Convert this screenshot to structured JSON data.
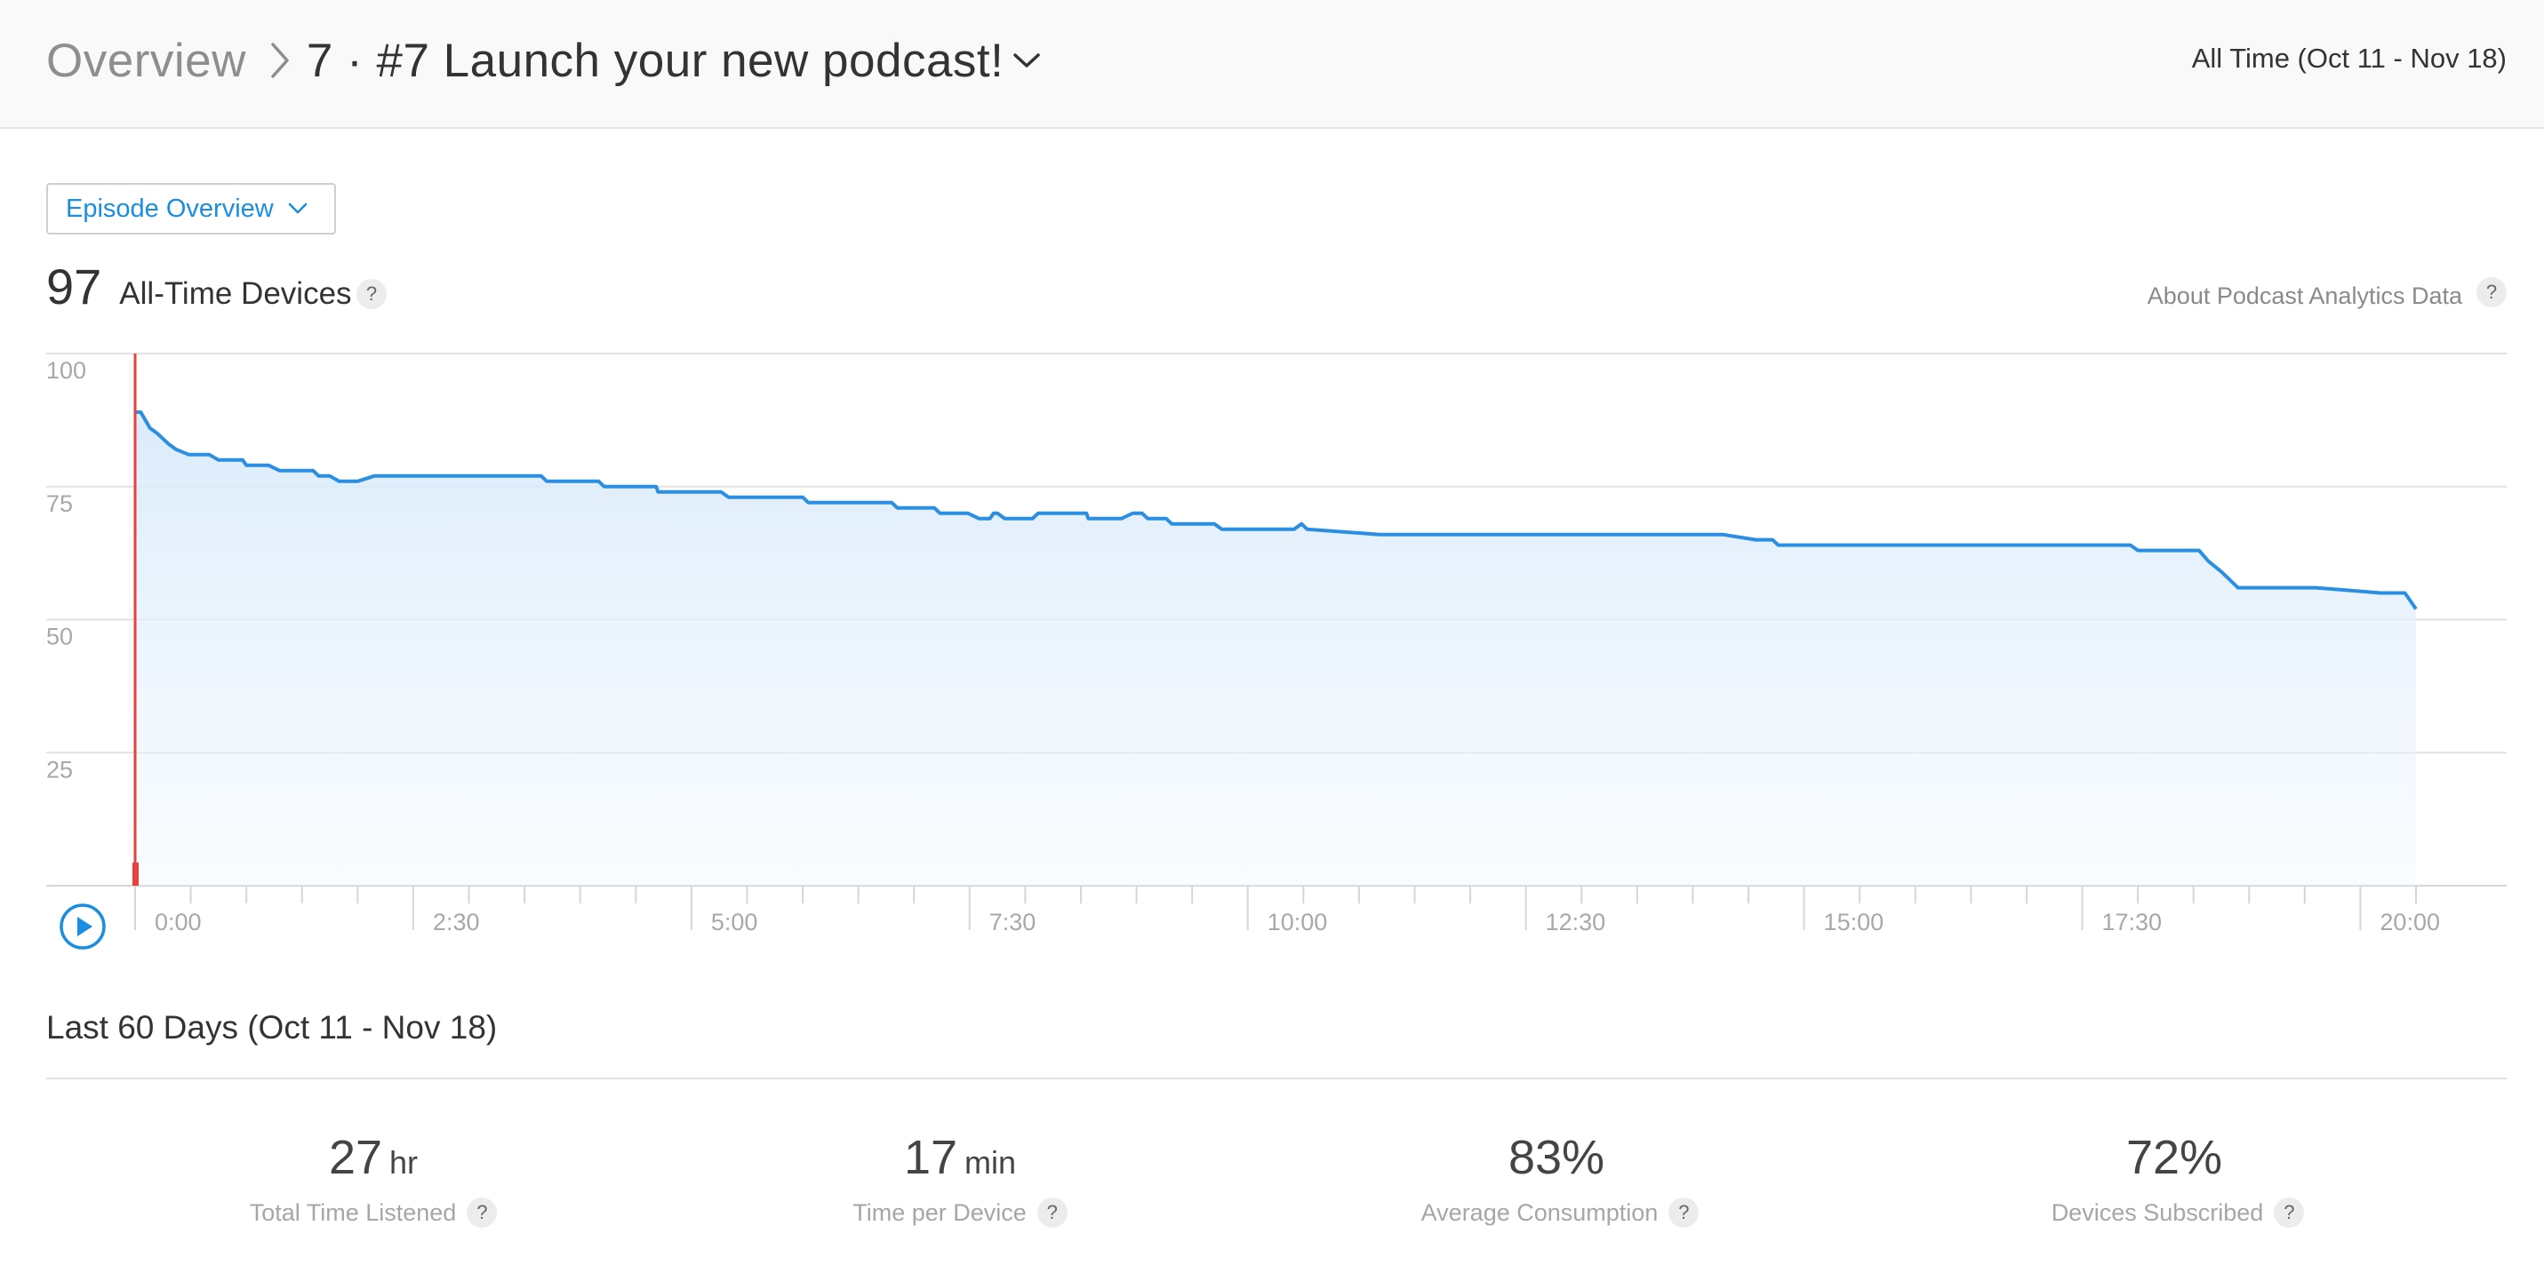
{
  "header": {
    "breadcrumb_root": "Overview",
    "current_title": "7 · #7 Launch your new podcast!",
    "date_range": "All Time (Oct 11 - Nov 18)"
  },
  "view_select": {
    "selected": "Episode Overview"
  },
  "total": {
    "value": "97",
    "label": "All-Time Devices",
    "help": "?"
  },
  "about": {
    "label": "About Podcast Analytics Data",
    "help": "?"
  },
  "colors": {
    "line": "#2a8fe3",
    "playhead": "#e8403a",
    "accent": "#1a8ee0"
  },
  "chart_data": {
    "type": "area",
    "xlabel": "",
    "ylabel": "",
    "xlim": [
      0,
      1230
    ],
    "ylim": [
      0,
      100
    ],
    "grid": true,
    "yticks": [
      "100",
      "75",
      "50",
      "25"
    ],
    "xticks": [
      "0:00",
      "2:30",
      "5:00",
      "7:30",
      "10:00",
      "12:30",
      "15:00",
      "17:30",
      "20:00"
    ],
    "series": [
      {
        "x": [
          0,
          3,
          8,
          12,
          15,
          18,
          22,
          29,
          40,
          45,
          58,
          60,
          72,
          78,
          96,
          99,
          105,
          110,
          120,
          129,
          153,
          181,
          219,
          222,
          250,
          253,
          281,
          282,
          301,
          316,
          320,
          324,
          360,
          363,
          408,
          411,
          431,
          434,
          449,
          455,
          461,
          463,
          465,
          469,
          484,
          487,
          505,
          513,
          514,
          525,
          532,
          538,
          543,
          546,
          556,
          559,
          582,
          586,
          612,
          625,
          629,
          632,
          671,
          718,
          847,
          852,
          856,
          874,
          883,
          886,
          1070,
          1076,
          1080,
          1113,
          1118,
          1125,
          1134,
          1140,
          1170,
          1176,
          1211,
          1213,
          1224,
          1230
        ],
        "y": [
          89,
          89,
          86,
          85,
          84,
          83,
          82,
          81,
          81,
          80,
          80,
          79,
          79,
          78,
          78,
          77,
          77,
          76,
          76,
          77,
          77,
          77,
          77,
          76,
          76,
          75,
          75,
          74,
          74,
          74,
          73,
          73,
          73,
          72,
          72,
          71,
          71,
          70,
          70,
          69,
          69,
          70,
          70,
          69,
          69,
          70,
          70,
          70,
          69,
          69,
          69,
          70,
          70,
          69,
          69,
          68,
          68,
          67,
          67,
          67,
          68,
          67,
          66,
          66,
          66,
          66,
          66,
          65,
          65,
          64,
          64,
          64,
          63,
          63,
          61,
          59,
          56,
          56,
          56,
          56,
          55,
          55,
          55,
          52
        ]
      }
    ]
  },
  "summary": {
    "title": "Last 60 Days (Oct 11 - Nov 18)",
    "metrics": [
      {
        "value": "27",
        "unit": "hr",
        "label": "Total Time Listened",
        "help": "?"
      },
      {
        "value": "17",
        "unit": "min",
        "label": "Time per Device",
        "help": "?"
      },
      {
        "value": "83%",
        "unit": "",
        "label": "Average Consumption",
        "help": "?"
      },
      {
        "value": "72%",
        "unit": "",
        "label": "Devices Subscribed",
        "help": "?"
      }
    ]
  }
}
